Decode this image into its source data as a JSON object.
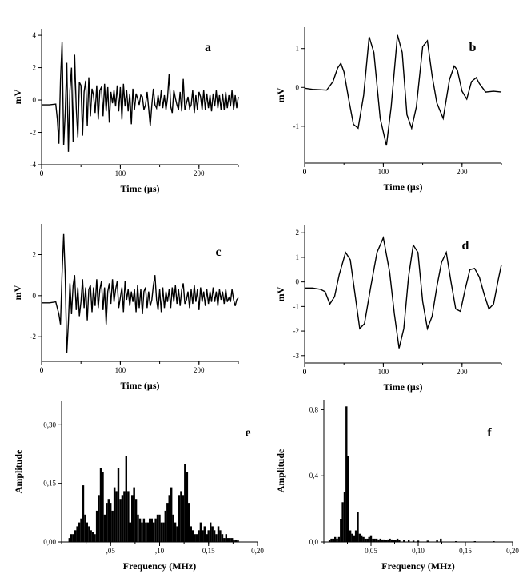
{
  "chart_data": [
    {
      "id": "a",
      "type": "line",
      "panel_letter": "a",
      "xlabel": "Time (µs)",
      "ylabel": "mV",
      "xlim": [
        0,
        250
      ],
      "ylim": [
        -4,
        4.4
      ],
      "xticks": [
        0,
        100,
        200
      ],
      "yticks": [
        -4,
        -2,
        0,
        2,
        4
      ],
      "yticklabels": [
        "-4",
        "-2",
        "0",
        "2",
        "4"
      ],
      "series": [
        {
          "x": [
            0,
            10,
            18,
            20,
            22,
            24,
            26,
            28,
            30,
            32,
            34,
            36,
            38,
            40,
            42,
            44,
            46,
            48,
            50,
            52,
            54,
            56,
            58,
            60,
            62,
            64,
            66,
            68,
            70,
            72,
            74,
            76,
            78,
            80,
            82,
            84,
            86,
            88,
            90,
            92,
            94,
            96,
            98,
            100,
            102,
            104,
            106,
            108,
            110,
            112,
            114,
            116,
            118,
            120,
            122,
            124,
            126,
            128,
            130,
            132,
            134,
            136,
            138,
            140,
            142,
            144,
            146,
            148,
            150,
            152,
            154,
            156,
            158,
            160,
            162,
            164,
            166,
            168,
            170,
            172,
            174,
            176,
            178,
            180,
            182,
            184,
            186,
            188,
            190,
            192,
            194,
            196,
            198,
            200,
            202,
            204,
            206,
            208,
            210,
            212,
            214,
            216,
            218,
            220,
            222,
            224,
            226,
            228,
            230,
            232,
            234,
            236,
            238,
            240,
            242,
            244,
            246,
            248,
            250
          ],
          "y": [
            -0.3,
            -0.3,
            -0.25,
            -1.2,
            -2.7,
            1.2,
            3.6,
            -2.8,
            -0.8,
            2.3,
            -3.2,
            0.6,
            2.0,
            -2.6,
            2.8,
            -0.5,
            -2.3,
            1.1,
            0.9,
            -2.2,
            0.5,
            1.2,
            -1.6,
            1.4,
            -1.0,
            0.7,
            0.3,
            -0.8,
            0.9,
            -1.2,
            0.6,
            0.8,
            -1.0,
            1.0,
            -0.7,
            0.8,
            -1.4,
            0.5,
            -0.2,
            0.6,
            -0.4,
            0.9,
            -0.7,
            0.8,
            -1.2,
            1.0,
            -0.4,
            0.6,
            -0.7,
            0.4,
            -1.5,
            0.7,
            -0.6,
            0.4,
            0.1,
            -0.3,
            0.3,
            0.2,
            -0.6,
            -0.3,
            0.5,
            -0.5,
            -1.6,
            -0.3,
            0.7,
            -0.3,
            -0.5,
            0.3,
            -0.4,
            0.6,
            -0.5,
            0.3,
            -0.6,
            0.1,
            1.6,
            -0.4,
            -0.8,
            0.6,
            0.1,
            -0.3,
            -0.6,
            0.5,
            -0.7,
            1.3,
            -0.6,
            -0.2,
            0.2,
            -0.5,
            -0.3,
            0.6,
            -0.8,
            0.3,
            -0.6,
            0.5,
            0.2,
            -0.6,
            0.6,
            -0.6,
            0.4,
            -0.5,
            0.3,
            -0.7,
            0.4,
            -0.4,
            0.6,
            -0.5,
            0.3,
            -0.6,
            0.4,
            -0.6,
            0.5,
            -0.5,
            0.3,
            -0.4,
            0.6,
            -0.6,
            0.3,
            -0.5,
            0.2
          ]
        }
      ]
    },
    {
      "id": "b",
      "type": "line",
      "panel_letter": "b",
      "xlabel": "Time (µs)",
      "ylabel": "mV",
      "xlim": [
        0,
        250
      ],
      "ylim": [
        -1.95,
        1.55
      ],
      "xticks": [
        0,
        100,
        200
      ],
      "yticks": [
        -1,
        0,
        1
      ],
      "yticklabels": [
        "-1",
        "0",
        "1"
      ],
      "series": [
        {
          "x": [
            0,
            10,
            20,
            28,
            36,
            42,
            46,
            50,
            56,
            62,
            68,
            75,
            82,
            88,
            96,
            104,
            110,
            118,
            124,
            130,
            136,
            142,
            150,
            156,
            162,
            168,
            176,
            184,
            190,
            194,
            200,
            206,
            212,
            218,
            222,
            230,
            240,
            250
          ],
          "y": [
            -0.02,
            -0.05,
            -0.06,
            -0.07,
            0.15,
            0.5,
            0.62,
            0.4,
            -0.3,
            -0.95,
            -1.05,
            -0.2,
            1.3,
            0.9,
            -0.8,
            -1.5,
            -0.5,
            1.35,
            0.9,
            -0.7,
            -1.05,
            -0.5,
            1.05,
            1.2,
            0.3,
            -0.4,
            -0.8,
            0.2,
            0.55,
            0.45,
            -0.1,
            -0.3,
            0.15,
            0.25,
            0.1,
            -0.12,
            -0.1,
            -0.12
          ]
        }
      ]
    },
    {
      "id": "c",
      "type": "line",
      "panel_letter": "c",
      "xlabel": "Time (µs)",
      "ylabel": "mV",
      "xlim": [
        0,
        250
      ],
      "ylim": [
        -3.2,
        3.5
      ],
      "xticks": [
        0,
        100,
        200
      ],
      "yticks": [
        -2,
        0,
        2
      ],
      "yticklabels": [
        "-2",
        "0",
        "2"
      ],
      "series": [
        {
          "x": [
            0,
            10,
            18,
            22,
            24,
            26,
            28,
            30,
            32,
            34,
            36,
            38,
            40,
            42,
            44,
            46,
            48,
            50,
            52,
            54,
            56,
            58,
            60,
            62,
            64,
            66,
            68,
            70,
            72,
            74,
            76,
            78,
            80,
            82,
            84,
            86,
            88,
            90,
            92,
            94,
            96,
            98,
            100,
            102,
            104,
            106,
            108,
            110,
            112,
            114,
            116,
            118,
            120,
            122,
            124,
            126,
            128,
            130,
            132,
            134,
            136,
            138,
            140,
            142,
            144,
            146,
            148,
            150,
            152,
            154,
            156,
            158,
            160,
            162,
            164,
            166,
            168,
            170,
            172,
            174,
            176,
            178,
            180,
            182,
            184,
            186,
            188,
            190,
            192,
            194,
            196,
            198,
            200,
            202,
            204,
            206,
            208,
            210,
            212,
            214,
            216,
            218,
            220,
            222,
            224,
            226,
            228,
            230,
            232,
            234,
            236,
            238,
            240,
            242,
            244,
            246,
            248,
            250
          ],
          "y": [
            -0.35,
            -0.35,
            -0.3,
            -0.9,
            -1.4,
            1.1,
            3.0,
            1.0,
            -2.8,
            -1.3,
            0.6,
            -0.9,
            0.5,
            1.0,
            -0.7,
            0.4,
            -1.0,
            -0.3,
            0.8,
            -0.6,
            0.4,
            -1.2,
            0.3,
            0.5,
            -0.8,
            0.4,
            -0.5,
            0.8,
            -0.6,
            0.3,
            0.7,
            -0.7,
            0.4,
            -1.4,
            0.2,
            0.6,
            -0.4,
            0.8,
            -0.3,
            0.3,
            0.7,
            -0.6,
            -0.1,
            0.4,
            -0.8,
            0.7,
            -0.2,
            0.3,
            -0.5,
            0.2,
            -0.3,
            0.3,
            -0.8,
            0.5,
            -0.6,
            0.3,
            -0.9,
            0.2,
            0.4,
            -0.6,
            0.2,
            -0.5,
            -0.2,
            0.5,
            1.0,
            -0.2,
            -0.7,
            0.3,
            -0.8,
            0.4,
            -0.6,
            0.2,
            -0.3,
            0.3,
            -0.6,
            0.4,
            -0.3,
            0.5,
            -0.4,
            0.3,
            -0.5,
            0.3,
            0.6,
            -0.4,
            -0.2,
            0.2,
            -0.6,
            0.3,
            -0.4,
            0.5,
            -0.3,
            0.3,
            -0.7,
            0.4,
            -0.3,
            0.2,
            -0.5,
            0.3,
            -0.4,
            0.2,
            -0.3,
            0.4,
            -0.3,
            0.2,
            -0.5,
            0.3,
            -0.2,
            0.2,
            -0.4,
            0.3,
            -0.3,
            -0.1,
            -0.3,
            0.3,
            -0.2,
            -0.5,
            -0.2,
            -0.1
          ]
        }
      ]
    },
    {
      "id": "d",
      "type": "line",
      "panel_letter": "d",
      "xlabel": "Time (µs)",
      "ylabel": "mV",
      "xlim": [
        0,
        250
      ],
      "ylim": [
        -3.3,
        2.3
      ],
      "xticks": [
        0,
        100,
        200
      ],
      "yticks": [
        -3,
        -2,
        -1,
        0,
        1,
        2
      ],
      "yticklabels": [
        "-3",
        "-2",
        "-1",
        "0",
        "1",
        "2"
      ],
      "series": [
        {
          "x": [
            0,
            10,
            20,
            26,
            32,
            38,
            44,
            52,
            58,
            64,
            70,
            76,
            84,
            92,
            100,
            108,
            114,
            120,
            126,
            132,
            138,
            144,
            150,
            156,
            162,
            168,
            174,
            180,
            186,
            192,
            198,
            204,
            210,
            216,
            222,
            228,
            234,
            240,
            246,
            250
          ],
          "y": [
            -0.25,
            -0.25,
            -0.3,
            -0.4,
            -0.9,
            -0.6,
            0.3,
            1.2,
            0.9,
            -0.5,
            -1.9,
            -1.7,
            -0.2,
            1.2,
            1.8,
            0.4,
            -1.3,
            -2.7,
            -1.9,
            0.2,
            1.5,
            1.2,
            -0.8,
            -1.9,
            -1.4,
            -0.2,
            0.8,
            1.2,
            0.0,
            -1.1,
            -1.2,
            -0.3,
            0.5,
            0.55,
            0.2,
            -0.5,
            -1.1,
            -0.9,
            0.1,
            0.7
          ]
        }
      ]
    },
    {
      "id": "e",
      "type": "bar",
      "panel_letter": "e",
      "xlabel": "Frequency (MHz)",
      "ylabel": "Amplitude",
      "xlim": [
        0,
        0.2
      ],
      "ylim": [
        0,
        0.36
      ],
      "xticks": [
        0.05,
        0.1,
        0.15,
        0.2
      ],
      "xticklabels": [
        ",05",
        ",10",
        "0,15",
        "0,20"
      ],
      "yticks": [
        0,
        0.15,
        0.3
      ],
      "yticklabels": [
        "0,00",
        "0,15",
        "0,30"
      ],
      "bin_width": 0.002,
      "categories": [
        0.008,
        0.01,
        0.012,
        0.014,
        0.016,
        0.018,
        0.02,
        0.022,
        0.024,
        0.026,
        0.028,
        0.03,
        0.032,
        0.034,
        0.036,
        0.038,
        0.04,
        0.042,
        0.044,
        0.046,
        0.048,
        0.05,
        0.052,
        0.054,
        0.056,
        0.058,
        0.06,
        0.062,
        0.064,
        0.066,
        0.068,
        0.07,
        0.072,
        0.074,
        0.076,
        0.078,
        0.08,
        0.082,
        0.084,
        0.086,
        0.088,
        0.09,
        0.092,
        0.094,
        0.096,
        0.098,
        0.1,
        0.102,
        0.104,
        0.106,
        0.108,
        0.11,
        0.112,
        0.114,
        0.116,
        0.118,
        0.12,
        0.122,
        0.124,
        0.126,
        0.128,
        0.13,
        0.132,
        0.134,
        0.136,
        0.138,
        0.14,
        0.142,
        0.144,
        0.146,
        0.148,
        0.15,
        0.152,
        0.154,
        0.156,
        0.158,
        0.16,
        0.162,
        0.164,
        0.166,
        0.168,
        0.17,
        0.172,
        0.174,
        0.176,
        0.178,
        0.18
      ],
      "values": [
        0.01,
        0.02,
        0.02,
        0.03,
        0.04,
        0.05,
        0.06,
        0.145,
        0.07,
        0.05,
        0.04,
        0.03,
        0.025,
        0.02,
        0.08,
        0.12,
        0.19,
        0.18,
        0.07,
        0.1,
        0.11,
        0.1,
        0.08,
        0.14,
        0.13,
        0.19,
        0.11,
        0.12,
        0.13,
        0.22,
        0.13,
        0.05,
        0.12,
        0.14,
        0.11,
        0.07,
        0.06,
        0.05,
        0.06,
        0.05,
        0.05,
        0.06,
        0.06,
        0.05,
        0.06,
        0.07,
        0.07,
        0.05,
        0.05,
        0.08,
        0.1,
        0.12,
        0.14,
        0.07,
        0.05,
        0.04,
        0.12,
        0.13,
        0.12,
        0.2,
        0.18,
        0.1,
        0.04,
        0.03,
        0.02,
        0.02,
        0.03,
        0.05,
        0.03,
        0.04,
        0.02,
        0.03,
        0.05,
        0.04,
        0.03,
        0.02,
        0.04,
        0.03,
        0.02,
        0.01,
        0.02,
        0.01,
        0.01,
        0.01,
        0.005,
        0.005,
        0.005
      ]
    },
    {
      "id": "f",
      "type": "bar",
      "panel_letter": "f",
      "xlabel": "Frequency (MHz)",
      "ylabel": "Amplitude",
      "xlim": [
        0,
        0.2
      ],
      "ylim": [
        0,
        0.86
      ],
      "xticks": [
        0.05,
        0.1,
        0.15,
        0.2
      ],
      "xticklabels": [
        "0,05",
        "0,10",
        "0,15",
        "0,20"
      ],
      "yticks": [
        0,
        0.4,
        0.8
      ],
      "yticklabels": [
        "0,0",
        "0,4",
        "0,8"
      ],
      "bin_width": 0.002,
      "categories": [
        0.006,
        0.008,
        0.01,
        0.012,
        0.014,
        0.016,
        0.018,
        0.02,
        0.022,
        0.024,
        0.026,
        0.028,
        0.03,
        0.032,
        0.034,
        0.036,
        0.038,
        0.04,
        0.042,
        0.044,
        0.046,
        0.048,
        0.05,
        0.052,
        0.054,
        0.056,
        0.058,
        0.06,
        0.062,
        0.064,
        0.066,
        0.068,
        0.07,
        0.072,
        0.074,
        0.076,
        0.078,
        0.08,
        0.085,
        0.09,
        0.095,
        0.1,
        0.11,
        0.12,
        0.124,
        0.14,
        0.16,
        0.18
      ],
      "values": [
        0.01,
        0.02,
        0.02,
        0.03,
        0.02,
        0.03,
        0.14,
        0.24,
        0.3,
        0.82,
        0.52,
        0.07,
        0.05,
        0.04,
        0.07,
        0.18,
        0.05,
        0.04,
        0.03,
        0.02,
        0.02,
        0.03,
        0.04,
        0.02,
        0.02,
        0.02,
        0.015,
        0.02,
        0.015,
        0.015,
        0.01,
        0.015,
        0.02,
        0.015,
        0.01,
        0.01,
        0.02,
        0.01,
        0.01,
        0.01,
        0.008,
        0.008,
        0.008,
        0.01,
        0.02,
        0.005,
        0.005,
        0.005
      ]
    }
  ]
}
